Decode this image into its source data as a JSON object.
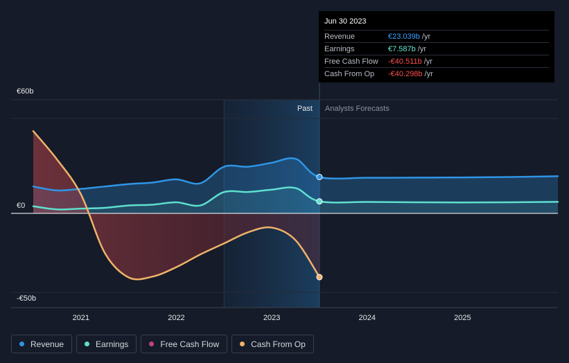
{
  "tooltip": {
    "date": "Jun 30 2023",
    "rows": [
      {
        "label": "Revenue",
        "value": "€23.039b",
        "unit": "/yr",
        "color": "#3aa0ff"
      },
      {
        "label": "Earnings",
        "value": "€7.587b",
        "unit": "/yr",
        "color": "#67e8d5"
      },
      {
        "label": "Free Cash Flow",
        "value": "-€40.511b",
        "unit": "/yr",
        "color": "#ff4d4d"
      },
      {
        "label": "Cash From Op",
        "value": "-€40.298b",
        "unit": "/yr",
        "color": "#ff4d4d"
      }
    ]
  },
  "legend": [
    {
      "label": "Revenue",
      "color": "#2f95e6"
    },
    {
      "label": "Earnings",
      "color": "#5fe0cf"
    },
    {
      "label": "Free Cash Flow",
      "color": "#c2447f"
    },
    {
      "label": "Cash From Op",
      "color": "#f0b26a"
    }
  ],
  "chart_data": {
    "type": "line",
    "y_ticks": [
      {
        "value": 60,
        "label": "€60b"
      },
      {
        "value": 0,
        "label": "€0"
      },
      {
        "value": -50,
        "label": "-€50b"
      }
    ],
    "ylim": [
      -50,
      60
    ],
    "xlim": [
      2020.5,
      2026.0
    ],
    "x_ticks": [
      {
        "value": 2021,
        "label": "2021"
      },
      {
        "value": 2022,
        "label": "2022"
      },
      {
        "value": 2023,
        "label": "2023"
      },
      {
        "value": 2024,
        "label": "2024"
      },
      {
        "value": 2025,
        "label": "2025"
      }
    ],
    "past_start": 2022.5,
    "past_end": 2023.5,
    "past_label": "Past",
    "forecast_label": "Analysts Forecasts",
    "series": [
      {
        "name": "Revenue",
        "color": "#2f95e6",
        "x": [
          2020.5,
          2020.75,
          2021.0,
          2021.25,
          2021.5,
          2021.75,
          2022.0,
          2022.25,
          2022.5,
          2022.75,
          2023.0,
          2023.25,
          2023.5,
          2024.0,
          2024.5,
          2025.0,
          2025.5,
          2026.0
        ],
        "y": [
          17,
          14.5,
          15.5,
          17,
          18.5,
          19.5,
          21.5,
          19,
          29.5,
          29.5,
          32,
          34.5,
          23,
          22.5,
          22.6,
          22.7,
          23,
          23.5
        ]
      },
      {
        "name": "Earnings",
        "color": "#5fe0cf",
        "x": [
          2020.5,
          2020.75,
          2021.0,
          2021.25,
          2021.5,
          2021.75,
          2022.0,
          2022.25,
          2022.5,
          2022.75,
          2023.0,
          2023.25,
          2023.5,
          2024.0,
          2024.5,
          2025.0,
          2025.5,
          2026.0
        ],
        "y": [
          4.5,
          2.5,
          3,
          3.5,
          5,
          5.5,
          7,
          5,
          13.5,
          13.5,
          15,
          16,
          7.6,
          7.2,
          7.0,
          6.9,
          7.0,
          7.3
        ]
      },
      {
        "name": "Cash From Op",
        "color": "#f0b26a",
        "x": [
          2020.5,
          2020.75,
          2021.0,
          2021.25,
          2021.5,
          2021.75,
          2022.0,
          2022.25,
          2022.5,
          2022.75,
          2023.0,
          2023.25,
          2023.5
        ],
        "y": [
          52,
          34,
          12,
          -25,
          -40.5,
          -40,
          -34,
          -26,
          -19,
          -12,
          -9,
          -17,
          -40.3
        ]
      }
    ]
  }
}
